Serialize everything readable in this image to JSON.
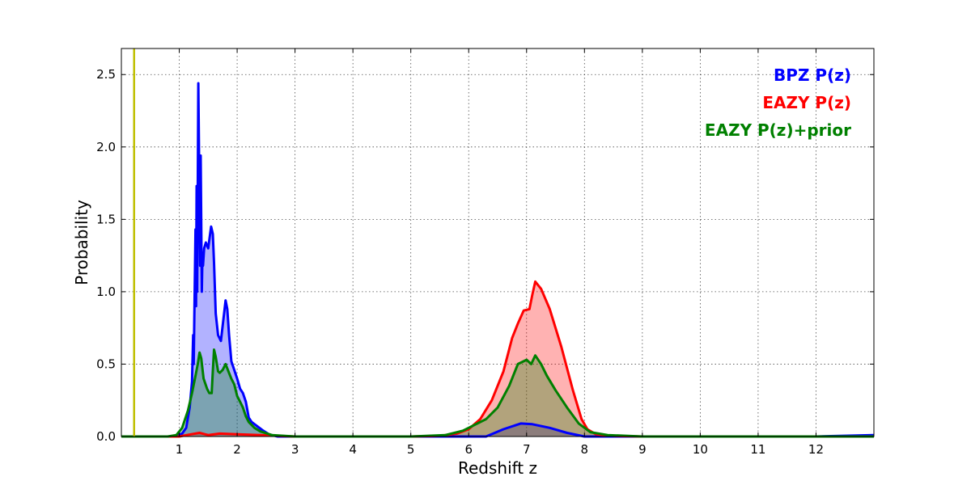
{
  "chart_data": {
    "type": "area",
    "title": "",
    "xlabel": "Redshift z",
    "ylabel": "Probability",
    "xlim": [
      0,
      13
    ],
    "ylim": [
      0,
      2.68
    ],
    "x_ticks": [
      1,
      2,
      3,
      4,
      5,
      6,
      7,
      8,
      9,
      10,
      11,
      12
    ],
    "y_ticks": [
      0.0,
      0.5,
      1.0,
      1.5,
      2.0,
      2.5
    ],
    "x_tick_labels": [
      "1",
      "2",
      "3",
      "4",
      "5",
      "6",
      "7",
      "8",
      "9",
      "10",
      "11",
      "12"
    ],
    "y_tick_labels": [
      "0.0",
      "0.5",
      "1.0",
      "1.5",
      "2.0",
      "2.5"
    ],
    "grid": true,
    "legend_position": "top-right",
    "vertical_line": {
      "x": 0.22,
      "color": "#bfbf00"
    },
    "series": [
      {
        "name": "BPZ P(z)",
        "color": "#0000ff",
        "fill": "#0000ff",
        "x": [
          0.0,
          0.9,
          1.05,
          1.12,
          1.18,
          1.22,
          1.24,
          1.25,
          1.26,
          1.28,
          1.29,
          1.3,
          1.31,
          1.33,
          1.35,
          1.36,
          1.37,
          1.39,
          1.4,
          1.41,
          1.43,
          1.46,
          1.5,
          1.55,
          1.58,
          1.6,
          1.63,
          1.67,
          1.72,
          1.76,
          1.8,
          1.83,
          1.86,
          1.9,
          1.95,
          2.0,
          2.05,
          2.1,
          2.15,
          2.2,
          2.25,
          2.35,
          2.45,
          2.55,
          2.7,
          3.0,
          4.0,
          5.5,
          6.3,
          6.6,
          6.9,
          7.1,
          7.4,
          7.7,
          8.0,
          8.5,
          10.0,
          12.0,
          13.0
        ],
        "y": [
          0.0,
          0.0,
          0.02,
          0.06,
          0.2,
          0.38,
          0.7,
          0.5,
          0.8,
          1.43,
          0.9,
          1.73,
          1.0,
          2.44,
          1.6,
          1.18,
          1.94,
          1.0,
          1.25,
          1.18,
          1.3,
          1.34,
          1.3,
          1.45,
          1.4,
          1.2,
          0.85,
          0.7,
          0.66,
          0.8,
          0.94,
          0.88,
          0.7,
          0.52,
          0.46,
          0.4,
          0.33,
          0.3,
          0.24,
          0.13,
          0.1,
          0.07,
          0.04,
          0.015,
          0.0,
          0.0,
          0.0,
          0.0,
          0.0,
          0.05,
          0.09,
          0.085,
          0.06,
          0.025,
          0.0,
          0.0,
          0.0,
          0.0,
          0.01
        ]
      },
      {
        "name": "EAZY P(z)",
        "color": "#ff0000",
        "fill": "#ff0000",
        "x": [
          0.0,
          1.0,
          1.2,
          1.35,
          1.5,
          1.7,
          2.0,
          2.4,
          3.0,
          5.0,
          5.5,
          5.8,
          6.0,
          6.2,
          6.4,
          6.6,
          6.75,
          6.85,
          6.95,
          7.05,
          7.1,
          7.15,
          7.25,
          7.4,
          7.6,
          7.8,
          7.95,
          8.05,
          8.2,
          8.5,
          9.0,
          10.0,
          13.0
        ],
        "y": [
          0.0,
          0.0,
          0.015,
          0.025,
          0.01,
          0.02,
          0.015,
          0.01,
          0.0,
          0.0,
          0.005,
          0.02,
          0.05,
          0.12,
          0.25,
          0.45,
          0.68,
          0.78,
          0.87,
          0.88,
          0.98,
          1.07,
          1.02,
          0.88,
          0.62,
          0.32,
          0.12,
          0.05,
          0.015,
          0.005,
          0.0,
          0.0,
          0.0
        ]
      },
      {
        "name": "EAZY P(z)+prior",
        "color": "#008000",
        "fill": "#008000",
        "x": [
          0.0,
          0.8,
          0.95,
          1.05,
          1.15,
          1.22,
          1.28,
          1.32,
          1.35,
          1.38,
          1.42,
          1.48,
          1.52,
          1.56,
          1.58,
          1.6,
          1.63,
          1.67,
          1.7,
          1.75,
          1.8,
          1.85,
          1.9,
          1.95,
          2.0,
          2.05,
          2.1,
          2.15,
          2.2,
          2.3,
          2.4,
          2.6,
          3.0,
          5.0,
          5.6,
          5.9,
          6.1,
          6.3,
          6.5,
          6.7,
          6.85,
          7.0,
          7.08,
          7.15,
          7.25,
          7.35,
          7.5,
          7.7,
          7.9,
          8.1,
          8.4,
          9.0,
          13.0
        ],
        "y": [
          0.0,
          0.0,
          0.01,
          0.06,
          0.18,
          0.3,
          0.42,
          0.5,
          0.58,
          0.54,
          0.4,
          0.33,
          0.3,
          0.3,
          0.45,
          0.6,
          0.55,
          0.45,
          0.44,
          0.46,
          0.5,
          0.45,
          0.4,
          0.36,
          0.28,
          0.24,
          0.2,
          0.14,
          0.1,
          0.06,
          0.035,
          0.01,
          0.0,
          0.0,
          0.01,
          0.04,
          0.08,
          0.12,
          0.2,
          0.35,
          0.5,
          0.53,
          0.5,
          0.56,
          0.5,
          0.42,
          0.32,
          0.2,
          0.09,
          0.03,
          0.01,
          0.0,
          0.0
        ]
      }
    ]
  }
}
